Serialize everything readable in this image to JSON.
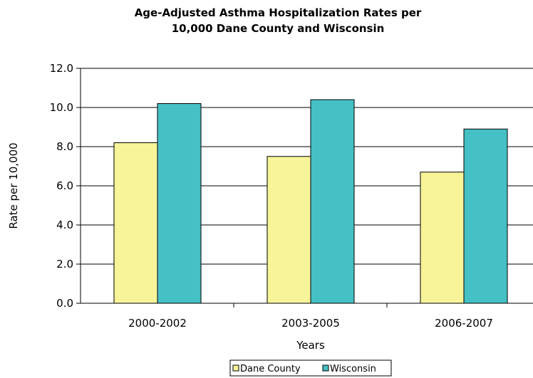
{
  "chart_data": {
    "type": "bar",
    "title_lines": [
      "Age-Adjusted Asthma Hospitalization Rates per",
      "10,000 Dane County and Wisconsin"
    ],
    "xlabel": "Years",
    "ylabel": "Rate per 10,000",
    "categories": [
      "2000-2002",
      "2003-2005",
      "2006-2007"
    ],
    "series": [
      {
        "name": "Dane County",
        "values": [
          8.2,
          7.5,
          6.7
        ],
        "color": "#F7F499"
      },
      {
        "name": "Wisconsin",
        "values": [
          10.2,
          10.4,
          8.9
        ],
        "color": "#45C1C5"
      }
    ],
    "ylim": [
      0,
      12
    ],
    "yticks": [
      "0.0",
      "2.0",
      "4.0",
      "6.0",
      "8.0",
      "10.0",
      "12.0"
    ],
    "grid": true,
    "legend_position": "bottom"
  }
}
